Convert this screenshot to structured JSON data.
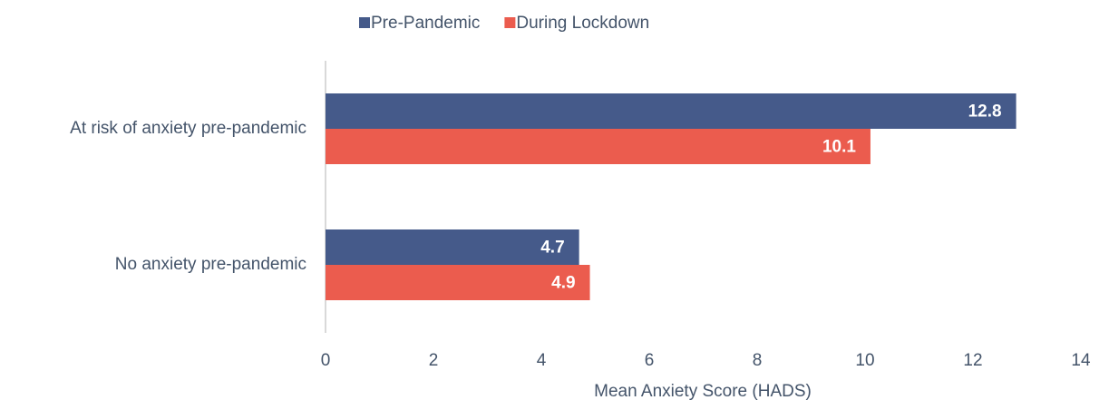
{
  "chart_data": {
    "type": "hbar",
    "xlabel": "Mean Anxiety Score (HADS)",
    "categories": [
      "At risk of anxiety pre-pandemic",
      "No anxiety pre-pandemic"
    ],
    "series": [
      {
        "name": "Pre-Pandemic",
        "color": "#455a8a",
        "values": [
          12.8,
          4.7
        ]
      },
      {
        "name": "During Lockdown",
        "color": "#eb5c4e",
        "values": [
          10.1,
          4.9
        ]
      }
    ],
    "xlim": [
      0,
      14
    ],
    "xticks": [
      0,
      2,
      4,
      6,
      8,
      10,
      12,
      14
    ],
    "legend": "top"
  }
}
